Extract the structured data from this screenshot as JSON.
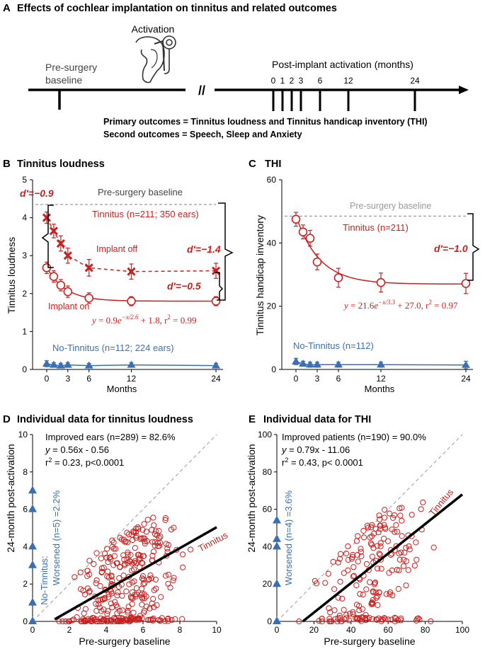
{
  "colors": {
    "red": "#C8201E",
    "blue": "#3A6FB3",
    "gray": "#9A9A9A",
    "black": "#000000"
  },
  "panelA": {
    "letter": "A",
    "title": "Effects of cochlear implantation on tinnitus and related outcomes",
    "activation": "Activation",
    "presurgery_line1": "Pre-surgery",
    "presurgery_line2": "baseline",
    "break_mark": "//",
    "post_label": "Post-implant activation (months)",
    "month_ticks": [
      "0",
      "1",
      "2",
      "3",
      "6",
      "12",
      "24"
    ],
    "primary": "Primary outcomes = Tinnitus loudness and Tinnitus handicap inventory (THI)",
    "second": "Second outcomes  = Speech, Sleep and Anxiety"
  },
  "chart_data": [
    {
      "id": "B",
      "type": "line",
      "letter": "B",
      "title": "Tinnitus loudness",
      "xlabel": "Months",
      "ylabel": "Tinnitus loudness",
      "xticks": [
        "0",
        "3",
        "6",
        "12",
        "24"
      ],
      "xtick_values": [
        0,
        3,
        6,
        12,
        24
      ],
      "yticks": [
        "0",
        "1",
        "2",
        "3",
        "4",
        "5"
      ],
      "ylim": [
        0,
        5
      ],
      "xlim": [
        -2,
        25
      ],
      "baseline": {
        "label": "Pre-surgery baseline",
        "value": 4.35
      },
      "series": [
        {
          "name": "Implant off",
          "color": "red",
          "marker": "x",
          "dashed": true,
          "x": [
            0,
            1,
            2,
            3,
            6,
            12,
            24
          ],
          "y": [
            4.0,
            3.65,
            3.32,
            3.0,
            2.68,
            2.58,
            2.6
          ],
          "err": [
            0.15,
            0.18,
            0.2,
            0.2,
            0.22,
            0.2,
            0.2
          ]
        },
        {
          "name": "Implant on",
          "color": "red",
          "marker": "circle",
          "dashed": false,
          "x": [
            0,
            1,
            2,
            3,
            6,
            12,
            24
          ],
          "y": [
            2.68,
            2.45,
            2.22,
            2.05,
            1.88,
            1.8,
            1.8
          ],
          "err": [
            0.15,
            0.15,
            0.15,
            0.15,
            0.14,
            0.12,
            0.12
          ],
          "fit": {
            "a": 0.9,
            "tau": 2.6,
            "c": 1.8
          }
        },
        {
          "name": "No-Tinnitus",
          "color": "blue",
          "marker": "triangle",
          "dashed": false,
          "x": [
            0,
            1,
            2,
            3,
            6,
            12,
            24
          ],
          "y": [
            0.15,
            0.12,
            0.1,
            0.12,
            0.1,
            0.12,
            0.1
          ],
          "err": [
            0.08,
            0.06,
            0.06,
            0.06,
            0.06,
            0.06,
            0.06
          ]
        }
      ],
      "labels": {
        "tinnitus": "Tinnitus (n=211; 350 ears)",
        "implant_off": "Implant off",
        "implant_on": "Implant on",
        "no_tinnitus": "No-Tinnitus (n=112; 224 ears)",
        "d1": "d′=−0.9",
        "d2": "d′=−1.4",
        "d3": "d′=−0.5",
        "eq_y": "y",
        "eq_eq": " = 0.9",
        "eq_e": "e",
        "eq_exp": "−x/2.6",
        "eq_rest": " + 1.8, r",
        "eq_sq": "2",
        "eq_r2": " = 0.99"
      }
    },
    {
      "id": "C",
      "type": "line",
      "letter": "C",
      "title": "THI",
      "xlabel": "Months",
      "ylabel": "Tinnitus handicap inventory",
      "xticks": [
        "0",
        "3",
        "6",
        "12",
        "24"
      ],
      "xtick_values": [
        0,
        3,
        6,
        12,
        24
      ],
      "yticks": [
        "0",
        "20",
        "40",
        "60"
      ],
      "ylim": [
        0,
        60
      ],
      "xlim": [
        -2,
        25
      ],
      "baseline": {
        "label": "Pre-surgery baseline",
        "value": 48.5
      },
      "series": [
        {
          "name": "Tinnitus (n=211)",
          "color": "red",
          "marker": "circle",
          "dashed": false,
          "x": [
            0,
            1,
            2,
            3,
            6,
            12,
            24
          ],
          "y": [
            47.5,
            43.5,
            41.5,
            34.0,
            29.0,
            27.5,
            27.2
          ],
          "err": [
            2.2,
            2.2,
            2.5,
            2.5,
            3.0,
            3.0,
            3.2
          ],
          "fit": {
            "a": 21.6,
            "tau": 3.3,
            "c": 27.0
          }
        },
        {
          "name": "No-Tinnitus (n=112)",
          "color": "blue",
          "marker": "triangle",
          "dashed": false,
          "x": [
            0,
            1,
            2,
            3,
            6,
            12,
            24
          ],
          "y": [
            2.5,
            1.8,
            1.5,
            1.5,
            1.5,
            1.5,
            1.4
          ],
          "err": [
            1.0,
            0.8,
            0.8,
            0.8,
            0.8,
            0.8,
            1.2
          ]
        }
      ],
      "labels": {
        "tinnitus": "Tinnitus (n=211)",
        "no_tinnitus": "No-Tinnitus (n=112)",
        "d1": "d′=−1.0",
        "eq_y": "y",
        "eq_eq": " = 21.6",
        "eq_e": "e",
        "eq_exp": "−x/3.3",
        "eq_rest": " + 27.0, r",
        "eq_sq": "2",
        "eq_r2": " =  0.97"
      }
    },
    {
      "id": "D",
      "type": "scatter",
      "letter": "D",
      "title": "Individual data for tinnitus loudness",
      "xlabel": "Pre-surgery baseline",
      "ylabel": "24-month post-activation",
      "xticks": [
        "0",
        "2",
        "4",
        "6",
        "8",
        "10"
      ],
      "yticks": [
        "0",
        "2",
        "4",
        "6",
        "8",
        "10"
      ],
      "xlim": [
        0,
        10
      ],
      "ylim": [
        0,
        10
      ],
      "stats": {
        "improved": "Improved ears (n=289) = 82.6%",
        "eq_y": "y",
        "eq_rest": " = 0.56x - 0.56",
        "r2_a": "r",
        "r2_sq": "2",
        "r2_b": " = 0.23, p<0.0001"
      },
      "fit": {
        "slope": 0.56,
        "intercept": -0.56,
        "x0": 1.2,
        "x1": 10
      },
      "line_label": "Tinnitus",
      "worsened_label": "Worsened (n=5) =2.2%",
      "no_tinnitus_label": "No-Tinnitus:",
      "worsened_y": [
        0,
        1,
        3,
        4,
        6,
        7
      ],
      "n_points": 340,
      "seed": 7
    },
    {
      "id": "E",
      "type": "scatter",
      "letter": "E",
      "title": "Individual data for THI",
      "xlabel": "Pre-surgery baseline",
      "ylabel": "24-month post-activation",
      "xticks": [
        "0",
        "20",
        "40",
        "60",
        "80",
        "100"
      ],
      "yticks": [
        "0",
        "20",
        "40",
        "60",
        "80",
        "100"
      ],
      "xlim": [
        0,
        100
      ],
      "ylim": [
        0,
        100
      ],
      "stats": {
        "improved": "Improved patients (n=190) = 90.0%",
        "eq_y": "y",
        "eq_rest": " = 0.79x - 11.06",
        "r2_a": "r",
        "r2_sq": "2",
        "r2_b": " = 0.43, p< 0.0001"
      },
      "fit": {
        "slope": 0.79,
        "intercept": -11.06,
        "x0": 14,
        "x1": 100
      },
      "line_label": "Tinnitus",
      "worsened_label": "Worsened (n=4) =3.6%",
      "worsened_y": [
        0,
        20,
        40,
        44,
        54
      ],
      "n_points": 210,
      "seed": 13
    }
  ]
}
